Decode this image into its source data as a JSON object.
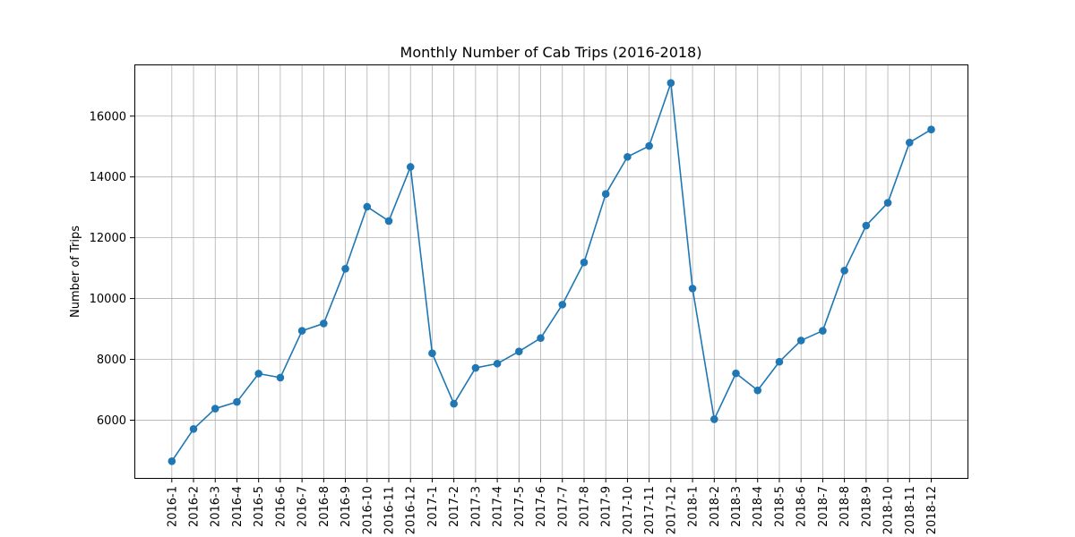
{
  "chart_data": {
    "type": "line",
    "title": "Monthly Number of Cab Trips (2016-2018)",
    "xlabel": "",
    "ylabel": "Number of Trips",
    "categories": [
      "2016-1",
      "2016-2",
      "2016-3",
      "2016-4",
      "2016-5",
      "2016-6",
      "2016-7",
      "2016-8",
      "2016-9",
      "2016-10",
      "2016-11",
      "2016-12",
      "2017-1",
      "2017-2",
      "2017-3",
      "2017-4",
      "2017-5",
      "2017-6",
      "2017-7",
      "2017-8",
      "2017-9",
      "2017-10",
      "2017-11",
      "2017-12",
      "2018-1",
      "2018-2",
      "2018-3",
      "2018-4",
      "2018-5",
      "2018-6",
      "2018-7",
      "2018-8",
      "2018-9",
      "2018-10",
      "2018-11",
      "2018-12"
    ],
    "series": [
      {
        "values": [
          4650,
          5710,
          6380,
          6600,
          7530,
          7400,
          8940,
          9180,
          10980,
          13020,
          12550,
          14330,
          8200,
          6540,
          7720,
          7860,
          8260,
          8700,
          9800,
          11190,
          13440,
          14660,
          15020,
          17090,
          10330,
          6030,
          7540,
          6980,
          7920,
          8620,
          8940,
          10920,
          12400,
          13150,
          15130,
          15560
        ],
        "color": "#1f77b4",
        "marker": "circle"
      }
    ],
    "ylim": [
      4100,
      17700
    ],
    "yticks": [
      6000,
      8000,
      10000,
      12000,
      14000,
      16000
    ],
    "grid": true,
    "legend": "none"
  }
}
